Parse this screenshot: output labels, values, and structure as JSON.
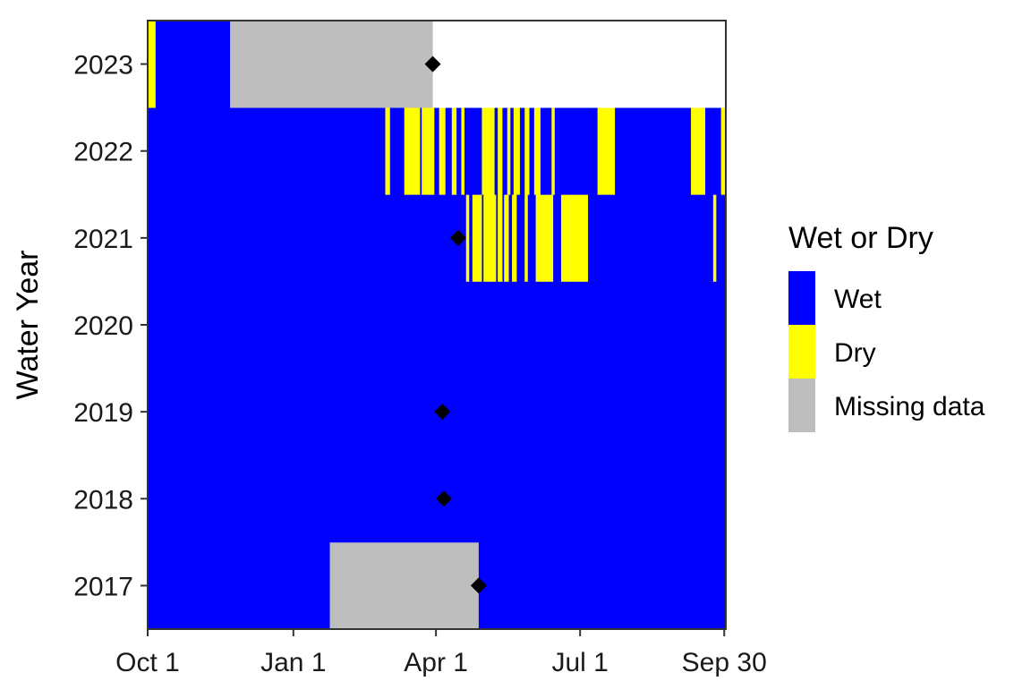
{
  "chart_data": {
    "type": "heatmap",
    "title": "",
    "xlabel": "",
    "ylabel": "Water Year",
    "x_ticks": [
      {
        "day": 0,
        "label": "Oct 1"
      },
      {
        "day": 92,
        "label": "Jan 1"
      },
      {
        "day": 182,
        "label": "Apr 1"
      },
      {
        "day": 273,
        "label": "Jul 1"
      },
      {
        "day": 364,
        "label": "Sep 30"
      }
    ],
    "xlim": [
      0,
      365
    ],
    "years": [
      2017,
      2018,
      2019,
      2020,
      2021,
      2022,
      2023
    ],
    "colors": {
      "wet": "#0000ff",
      "dry": "#ffff00",
      "missing": "#bebebe",
      "none": "#ffffff",
      "marker": "#000000"
    },
    "legend": {
      "title": "Wet or Dry",
      "position": "right",
      "items": [
        {
          "label": "Wet",
          "color": "#0000ff"
        },
        {
          "label": "Dry",
          "color": "#ffff00"
        },
        {
          "label": "Missing data",
          "color": "#bebebe"
        }
      ]
    },
    "rows": [
      {
        "year": 2017,
        "segments": [
          {
            "start": 0,
            "end": 115,
            "status": "wet"
          },
          {
            "start": 115,
            "end": 209,
            "status": "missing"
          },
          {
            "start": 209,
            "end": 365,
            "status": "wet"
          }
        ]
      },
      {
        "year": 2018,
        "segments": [
          {
            "start": 0,
            "end": 365,
            "status": "wet"
          }
        ]
      },
      {
        "year": 2019,
        "segments": [
          {
            "start": 0,
            "end": 365,
            "status": "wet"
          }
        ]
      },
      {
        "year": 2020,
        "segments": [
          {
            "start": 0,
            "end": 365,
            "status": "wet"
          }
        ]
      },
      {
        "year": 2021,
        "segments": [
          {
            "start": 0,
            "end": 201,
            "status": "wet"
          },
          {
            "start": 201,
            "end": 203,
            "status": "dry"
          },
          {
            "start": 203,
            "end": 205,
            "status": "wet"
          },
          {
            "start": 205,
            "end": 211,
            "status": "dry"
          },
          {
            "start": 211,
            "end": 212,
            "status": "wet"
          },
          {
            "start": 212,
            "end": 220,
            "status": "dry"
          },
          {
            "start": 220,
            "end": 221,
            "status": "wet"
          },
          {
            "start": 221,
            "end": 224,
            "status": "dry"
          },
          {
            "start": 224,
            "end": 225,
            "status": "wet"
          },
          {
            "start": 225,
            "end": 228,
            "status": "dry"
          },
          {
            "start": 228,
            "end": 230,
            "status": "wet"
          },
          {
            "start": 230,
            "end": 233,
            "status": "dry"
          },
          {
            "start": 233,
            "end": 238,
            "status": "wet"
          },
          {
            "start": 238,
            "end": 240,
            "status": "dry"
          },
          {
            "start": 240,
            "end": 245,
            "status": "wet"
          },
          {
            "start": 245,
            "end": 256,
            "status": "dry"
          },
          {
            "start": 256,
            "end": 261,
            "status": "wet"
          },
          {
            "start": 261,
            "end": 278,
            "status": "dry"
          },
          {
            "start": 278,
            "end": 357,
            "status": "wet"
          },
          {
            "start": 357,
            "end": 359,
            "status": "dry"
          },
          {
            "start": 359,
            "end": 365,
            "status": "wet"
          }
        ]
      },
      {
        "year": 2022,
        "segments": [
          {
            "start": 0,
            "end": 150,
            "status": "wet"
          },
          {
            "start": 150,
            "end": 153,
            "status": "dry"
          },
          {
            "start": 153,
            "end": 162,
            "status": "wet"
          },
          {
            "start": 162,
            "end": 172,
            "status": "dry"
          },
          {
            "start": 172,
            "end": 173,
            "status": "wet"
          },
          {
            "start": 173,
            "end": 181,
            "status": "dry"
          },
          {
            "start": 181,
            "end": 184,
            "status": "wet"
          },
          {
            "start": 184,
            "end": 188,
            "status": "dry"
          },
          {
            "start": 188,
            "end": 192,
            "status": "wet"
          },
          {
            "start": 192,
            "end": 195,
            "status": "dry"
          },
          {
            "start": 195,
            "end": 198,
            "status": "wet"
          },
          {
            "start": 198,
            "end": 200,
            "status": "dry"
          },
          {
            "start": 200,
            "end": 211,
            "status": "wet"
          },
          {
            "start": 211,
            "end": 219,
            "status": "dry"
          },
          {
            "start": 219,
            "end": 221,
            "status": "wet"
          },
          {
            "start": 221,
            "end": 224,
            "status": "dry"
          },
          {
            "start": 224,
            "end": 227,
            "status": "wet"
          },
          {
            "start": 227,
            "end": 229,
            "status": "dry"
          },
          {
            "start": 229,
            "end": 231,
            "status": "wet"
          },
          {
            "start": 231,
            "end": 235,
            "status": "dry"
          },
          {
            "start": 235,
            "end": 238,
            "status": "wet"
          },
          {
            "start": 238,
            "end": 241,
            "status": "dry"
          },
          {
            "start": 241,
            "end": 244,
            "status": "wet"
          },
          {
            "start": 244,
            "end": 248,
            "status": "dry"
          },
          {
            "start": 248,
            "end": 255,
            "status": "wet"
          },
          {
            "start": 255,
            "end": 257,
            "status": "dry"
          },
          {
            "start": 257,
            "end": 284,
            "status": "wet"
          },
          {
            "start": 284,
            "end": 295,
            "status": "dry"
          },
          {
            "start": 295,
            "end": 343,
            "status": "wet"
          },
          {
            "start": 343,
            "end": 352,
            "status": "dry"
          },
          {
            "start": 352,
            "end": 362,
            "status": "wet"
          },
          {
            "start": 362,
            "end": 365,
            "status": "dry"
          }
        ]
      },
      {
        "year": 2023,
        "segments": [
          {
            "start": 0,
            "end": 5,
            "status": "dry"
          },
          {
            "start": 5,
            "end": 52,
            "status": "wet"
          },
          {
            "start": 52,
            "end": 180,
            "status": "missing"
          },
          {
            "start": 180,
            "end": 365,
            "status": "none"
          }
        ]
      }
    ],
    "markers": [
      {
        "year": 2017,
        "day": 209
      },
      {
        "year": 2018,
        "day": 187
      },
      {
        "year": 2019,
        "day": 186
      },
      {
        "year": 2021,
        "day": 196
      },
      {
        "year": 2023,
        "day": 180
      }
    ]
  }
}
